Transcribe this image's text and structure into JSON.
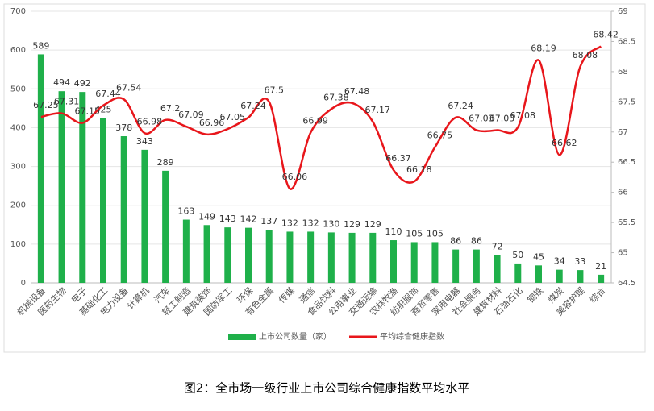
{
  "chart_data": {
    "type": "bar-line",
    "caption": "图2：全市场一级行业上市公司综合健康指数平均水平",
    "categories": [
      "机械设备",
      "医药生物",
      "电子",
      "基础化工",
      "电力设备",
      "计算机",
      "汽车",
      "轻工制造",
      "建筑装饰",
      "国防军工",
      "环保",
      "有色金属",
      "传媒",
      "通信",
      "食品饮料",
      "公用事业",
      "交通运输",
      "农林牧渔",
      "纺织服饰",
      "商贸零售",
      "家用电器",
      "社会服务",
      "建筑材料",
      "石油石化",
      "钢铁",
      "煤炭",
      "美容护理",
      "综合"
    ],
    "series": [
      {
        "name": "上市公司数量（家）",
        "color": "#1fb04a",
        "type": "bar",
        "values": [
          589,
          494,
          492,
          425,
          378,
          343,
          289,
          163,
          149,
          143,
          142,
          137,
          132,
          132,
          130,
          129,
          129,
          110,
          105,
          105,
          86,
          86,
          72,
          50,
          45,
          34,
          33,
          21
        ]
      },
      {
        "name": "平均综合健康指数",
        "color": "#e8161b",
        "type": "line",
        "axis": "y2",
        "values": [
          67.25,
          67.31,
          67.15,
          67.44,
          67.54,
          66.98,
          67.2,
          67.09,
          66.96,
          67.05,
          67.24,
          67.5,
          66.06,
          66.99,
          67.38,
          67.48,
          67.17,
          66.37,
          66.18,
          66.75,
          67.24,
          67.03,
          67.03,
          67.08,
          68.19,
          66.62,
          68.08,
          68.42
        ]
      }
    ],
    "ylim": [
      0,
      700
    ],
    "yticks": [
      0,
      100,
      200,
      300,
      400,
      500,
      600,
      700
    ],
    "y2lim": [
      64.5,
      69
    ],
    "y2ticks": [
      64.5,
      65,
      65.5,
      66,
      66.5,
      67,
      67.5,
      68,
      68.5,
      69
    ],
    "legend": "bottom"
  }
}
